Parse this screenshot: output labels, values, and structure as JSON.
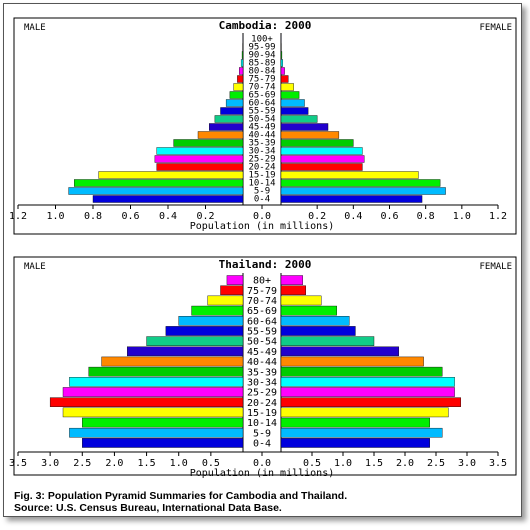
{
  "colors": [
    "#0000dd",
    "#00bbff",
    "#00ee00",
    "#ffff00",
    "#ff0000",
    "#ff00ff",
    "#00ffff",
    "#00cc00",
    "#ff8800",
    "#2200cc",
    "#11cc88"
  ],
  "caption": {
    "line1": "Fig. 3:  Population Pyramid Summaries for Cambodia and Thailand.",
    "line2": "Source: U.S. Census Bureau, International Data Base."
  },
  "chart_data": [
    {
      "type": "bar",
      "title": "Cambodia: 2000",
      "left_label": "MALE",
      "right_label": "FEMALE",
      "xlabel": "Population (in millions)",
      "categories": [
        "0-4",
        "5-9",
        "10-14",
        "15-19",
        "20-24",
        "25-29",
        "30-34",
        "35-39",
        "40-44",
        "45-49",
        "50-54",
        "55-59",
        "60-64",
        "65-69",
        "70-74",
        "75-79",
        "80-84",
        "85-89",
        "90-94",
        "95-99",
        "100+"
      ],
      "series": [
        {
          "name": "MALE",
          "values": [
            0.8,
            0.93,
            0.9,
            0.77,
            0.46,
            0.47,
            0.46,
            0.37,
            0.24,
            0.18,
            0.15,
            0.12,
            0.09,
            0.07,
            0.05,
            0.03,
            0.02,
            0.01,
            0.005,
            0.002,
            0.001
          ]
        },
        {
          "name": "FEMALE",
          "values": [
            0.78,
            0.91,
            0.88,
            0.76,
            0.45,
            0.46,
            0.45,
            0.4,
            0.32,
            0.26,
            0.2,
            0.15,
            0.13,
            0.1,
            0.07,
            0.04,
            0.02,
            0.01,
            0.005,
            0.002,
            0.001
          ]
        }
      ],
      "xticks": [
        "1.2",
        "1.0",
        "0.8",
        "0.6",
        "0.4",
        "0.2",
        "0.0",
        "0.2",
        "0.4",
        "0.6",
        "0.8",
        "1.0",
        "1.2"
      ],
      "xlim": [
        -1.2,
        1.2
      ]
    },
    {
      "type": "bar",
      "title": "Thailand: 2000",
      "left_label": "MALE",
      "right_label": "FEMALE",
      "xlabel": "Population (in millions)",
      "categories": [
        "0-4",
        "5-9",
        "10-14",
        "15-19",
        "20-24",
        "25-29",
        "30-34",
        "35-39",
        "40-44",
        "45-49",
        "50-54",
        "55-59",
        "60-64",
        "65-69",
        "70-74",
        "75-79",
        "80+"
      ],
      "series": [
        {
          "name": "MALE",
          "values": [
            2.5,
            2.7,
            2.5,
            2.8,
            3.0,
            2.8,
            2.7,
            2.4,
            2.2,
            1.8,
            1.5,
            1.2,
            1.0,
            0.8,
            0.55,
            0.35,
            0.25
          ]
        },
        {
          "name": "FEMALE",
          "values": [
            2.4,
            2.6,
            2.4,
            2.7,
            2.9,
            2.8,
            2.8,
            2.6,
            2.3,
            1.9,
            1.5,
            1.2,
            1.1,
            0.9,
            0.65,
            0.4,
            0.35
          ]
        }
      ],
      "xticks": [
        "3.5",
        "3.0",
        "2.5",
        "2.0",
        "1.5",
        "1.0",
        "0.5",
        "0.0",
        "0.5",
        "1.0",
        "1.5",
        "2.0",
        "2.5",
        "3.0",
        "3.5"
      ],
      "xlim": [
        -3.5,
        3.5
      ]
    }
  ]
}
